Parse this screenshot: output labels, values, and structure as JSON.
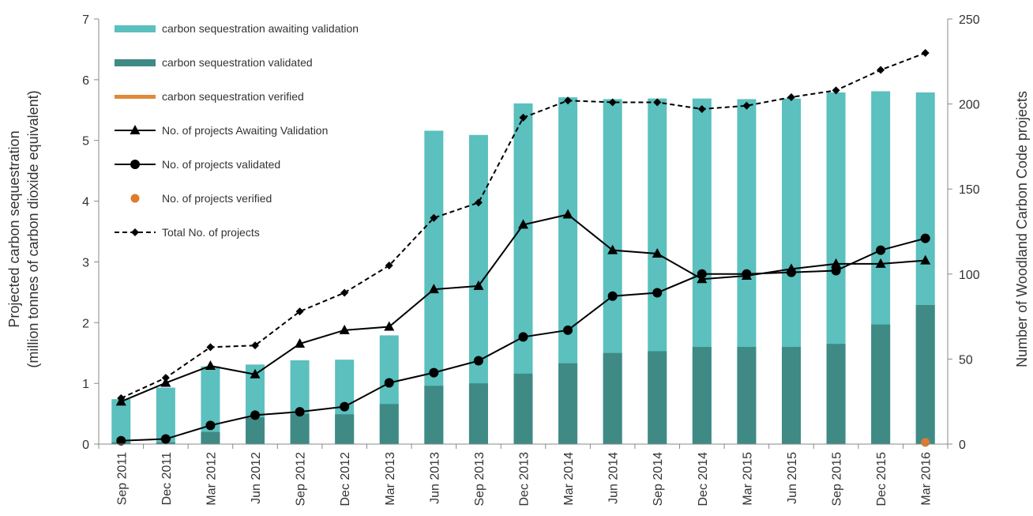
{
  "chart_data": {
    "type": "bar",
    "categories": [
      "Sep 2011",
      "Dec 2011",
      "Mar 2012",
      "Jun 2012",
      "Sep 2012",
      "Dec 2012",
      "Mar 2013",
      "Jun 2013",
      "Sep 2013",
      "Dec 2013",
      "Mar 2014",
      "Jun 2014",
      "Sep 2014",
      "Dec 2014",
      "Mar 2015",
      "Jun 2015",
      "Sep 2015",
      "Dec 2015",
      "Mar 2016"
    ],
    "ylabel_left": [
      "Projected carbon sequestration",
      "(million tonnes of carbon dioxide equivalent)"
    ],
    "ylabel_right": "Number of Woodland Carbon Code projects",
    "ylim_left": [
      0,
      7
    ],
    "yticks_left": [
      0,
      1,
      2,
      3,
      4,
      5,
      6,
      7
    ],
    "ylim_right": [
      0,
      250
    ],
    "yticks_right": [
      0,
      50,
      100,
      150,
      200,
      250
    ],
    "legend_placement": "top-left",
    "colors": {
      "awaiting_bar": "#5bc0be",
      "validated_bar": "#3f8a85",
      "verified_bar": "#e08a3c",
      "verified_dot": "#e07b2a",
      "line": "#000000"
    },
    "bar_series": [
      {
        "name": "carbon sequestration awaiting validation",
        "stack": "total_height",
        "values": [
          0.74,
          0.93,
          1.28,
          1.31,
          1.38,
          1.39,
          1.79,
          5.16,
          5.09,
          5.61,
          5.71,
          5.68,
          5.69,
          5.69,
          5.68,
          5.69,
          5.79,
          5.81,
          5.79
        ]
      },
      {
        "name": "carbon sequestration validated",
        "values": [
          0.03,
          0.03,
          0.2,
          0.44,
          0.5,
          0.49,
          0.66,
          0.96,
          1.0,
          1.16,
          1.33,
          1.5,
          1.53,
          1.6,
          1.6,
          1.6,
          1.65,
          1.97,
          2.29
        ]
      },
      {
        "name": "carbon sequestration verified",
        "values": [
          0,
          0,
          0,
          0,
          0,
          0,
          0,
          0,
          0,
          0,
          0,
          0,
          0,
          0,
          0,
          0,
          0,
          0,
          0
        ]
      }
    ],
    "line_series": [
      {
        "name": "No. of projects Awaiting Validation",
        "marker": "triangle",
        "dash": "solid",
        "values": [
          25,
          36,
          46,
          41,
          59,
          67,
          69,
          91,
          93,
          129,
          135,
          114,
          112,
          97,
          99,
          103,
          106,
          106,
          108
        ]
      },
      {
        "name": "No. of projects validated",
        "marker": "circle",
        "dash": "solid",
        "values": [
          2,
          3,
          11,
          17,
          19,
          22,
          36,
          42,
          49,
          63,
          67,
          87,
          89,
          100,
          100,
          101,
          102,
          114,
          121
        ]
      },
      {
        "name": "No. of projects verified",
        "marker": "dot",
        "dash": "none",
        "values": [
          null,
          null,
          null,
          null,
          null,
          null,
          null,
          null,
          null,
          null,
          null,
          null,
          null,
          null,
          null,
          null,
          null,
          null,
          1
        ]
      },
      {
        "name": "Total No. of projects",
        "marker": "diamond",
        "dash": "dashed",
        "values": [
          27,
          39,
          57,
          58,
          78,
          89,
          105,
          133,
          142,
          192,
          202,
          201,
          201,
          197,
          199,
          204,
          208,
          220,
          230
        ]
      }
    ]
  }
}
